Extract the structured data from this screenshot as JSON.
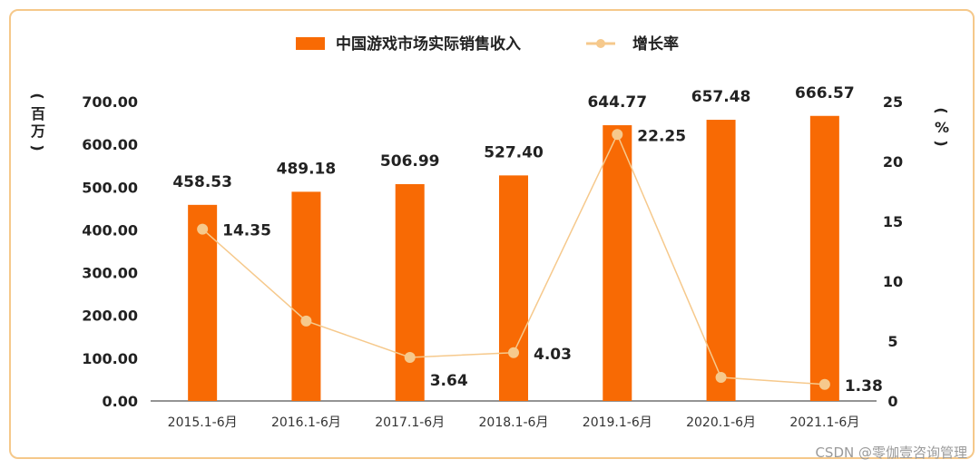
{
  "chart_data": {
    "type": "bar",
    "categories": [
      "2015.1-6月",
      "2016.1-6月",
      "2017.1-6月",
      "2018.1-6月",
      "2019.1-6月",
      "2020.1-6月",
      "2021.1-6月"
    ],
    "series": [
      {
        "name": "中国游戏市场实际销售收入",
        "type": "bar",
        "axis": "left",
        "values": [
          458.53,
          489.18,
          506.99,
          527.4,
          644.77,
          657.48,
          666.57
        ],
        "labels": [
          "458.53",
          "489.18",
          "506.99",
          "527.40",
          "644.77",
          "657.48",
          "666.57"
        ],
        "color": "#f86a04"
      },
      {
        "name": "增长率",
        "type": "line",
        "axis": "right",
        "values": [
          14.35,
          6.68,
          3.64,
          4.03,
          22.25,
          1.97,
          1.38
        ],
        "labels": [
          "14.35",
          "",
          "3.64",
          "4.03",
          "22.25",
          "",
          "1.38"
        ],
        "color": "#f6c98c"
      }
    ],
    "ylabel": "(百万)",
    "y2label": "(%)",
    "ylim": [
      0,
      700
    ],
    "yticks": [
      "0.00",
      "100.00",
      "200.00",
      "300.00",
      "400.00",
      "500.00",
      "600.00",
      "700.00"
    ],
    "y2lim": [
      0,
      25
    ],
    "y2ticks": [
      "0",
      "5",
      "10",
      "15",
      "20",
      "25"
    ],
    "legend": "top-center",
    "grid": false
  },
  "watermark": "CSDN @零伽壹咨询管理"
}
